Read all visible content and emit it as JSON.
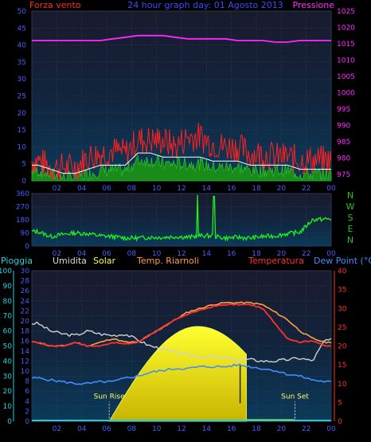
{
  "colors": {
    "wind_label": "#ff2a2a",
    "title": "#3a4cff",
    "pressure": "#ff28ff",
    "tick": "#4a5cff",
    "dir": "#17c817",
    "umidita_label": "#dddddd",
    "solar": "#ffff33",
    "temp_riarnoli": "#ffa040",
    "temp": "#ff3030",
    "dewpoint": "#3f8fff",
    "rain_axis": "#1fd4e0"
  },
  "labels": {
    "forza_vento": "Forza vento",
    "title": "24 hour graph day: 01 Agosto 2013",
    "pressione": "Pressione",
    "pioggia": "Pioggia",
    "umidita": "Umidita",
    "solar": "Solar",
    "temp_riarnoli": "Temp. Riarnoli",
    "temperatura": "Temperatura",
    "dew_point": "Dew Point (°C)",
    "sun_rise": "Sun Rise",
    "sun_set": "Sun Set"
  },
  "chart_data": [
    {
      "type": "line",
      "name": "wind_pressure",
      "x_labels": [
        "02",
        "04",
        "06",
        "08",
        "10",
        "12",
        "14",
        "16",
        "18",
        "20",
        "22",
        "00"
      ],
      "y_left": {
        "label": "Forza vento",
        "ticks": [
          0,
          5,
          10,
          15,
          20,
          25,
          30,
          35,
          40,
          45,
          50
        ],
        "range": [
          0,
          50
        ]
      },
      "y_right": {
        "label": "Pressione",
        "ticks": [
          975,
          980,
          985,
          990,
          995,
          1000,
          1005,
          1010,
          1015,
          1020,
          1025
        ],
        "range": [
          973,
          1025
        ]
      },
      "gust_hourly": [
        6,
        4,
        4,
        4,
        7,
        8,
        9,
        8,
        12,
        12,
        12,
        10,
        13,
        13,
        11,
        10,
        10,
        8,
        8,
        7,
        7,
        6,
        6,
        6
      ],
      "speed_hourly": [
        3,
        2,
        1,
        1,
        2,
        3,
        3,
        3,
        6,
        6,
        5,
        5,
        5,
        5,
        4,
        4,
        4,
        3,
        3,
        3,
        3,
        2,
        2,
        2
      ],
      "pressure_hourly": [
        1016,
        1016,
        1016,
        1016,
        1016,
        1016,
        1016.5,
        1017,
        1017.5,
        1017.5,
        1017.5,
        1017,
        1016.5,
        1016.5,
        1016.5,
        1016.5,
        1016,
        1016,
        1016,
        1015.5,
        1015.5,
        1016,
        1016,
        1016
      ]
    },
    {
      "type": "line",
      "name": "wind_direction",
      "x_labels": [
        "02",
        "04",
        "06",
        "08",
        "10",
        "12",
        "14",
        "16",
        "18",
        "20",
        "22",
        "00"
      ],
      "y_left": {
        "ticks": [
          0,
          90,
          180,
          270,
          360
        ],
        "range": [
          0,
          360
        ]
      },
      "y_right_cardinals": [
        "N",
        "W",
        "S",
        "E",
        "N"
      ],
      "direction_hourly": [
        100,
        65,
        80,
        90,
        85,
        70,
        65,
        55,
        55,
        60,
        60,
        65,
        60,
        70,
        70,
        55,
        60,
        55,
        65,
        70,
        85,
        95,
        180,
        185
      ],
      "spikes": [
        {
          "hour": 13.3,
          "value": 350
        },
        {
          "hour": 14.6,
          "value": 340
        }
      ]
    },
    {
      "type": "line",
      "name": "rain_humidity_solar_temp",
      "x_labels": [
        "02",
        "04",
        "06",
        "08",
        "10",
        "12",
        "14",
        "16",
        "18",
        "20",
        "22",
        "00"
      ],
      "rain_axis": {
        "label": "Pioggia",
        "ticks": [
          0,
          10,
          20,
          30,
          40,
          50,
          60,
          70,
          80,
          90,
          100
        ],
        "range": [
          0,
          100
        ]
      },
      "humidity_axis": {
        "ticks": [
          0,
          2,
          4,
          6,
          8,
          10,
          12,
          14,
          16,
          18,
          20,
          22,
          24,
          26,
          28,
          30
        ],
        "range": [
          0,
          30
        ]
      },
      "temp_axis": {
        "label": "Temperatura",
        "ticks": [
          0,
          5,
          10,
          15,
          20,
          25,
          30,
          35,
          40
        ],
        "range": [
          0,
          40
        ]
      },
      "sunrise_hour": 6.2,
      "sunset_hour": 21.1,
      "solar_peak_hour": 13.3,
      "solar_peak_pct": 63,
      "solar_cutoff_hour": 17.2,
      "humidity_hourly": [
        65,
        60,
        58,
        57,
        60,
        58,
        57,
        58,
        54,
        50,
        48,
        46,
        44,
        43,
        43,
        42,
        41,
        41,
        40,
        40,
        41,
        42,
        40,
        54
      ],
      "temp_riarnoli_hourly": [
        21,
        20,
        20,
        21,
        20,
        21,
        22,
        21,
        21,
        23,
        25,
        27,
        29,
        30,
        31,
        31.5,
        31.5,
        31.5,
        31,
        29,
        27,
        24,
        22,
        21
      ],
      "temperatura_hourly": [
        21,
        20,
        20,
        21,
        20,
        20,
        21,
        20.5,
        21,
        23,
        25,
        27,
        28.5,
        29.5,
        30.5,
        31,
        31,
        31,
        30,
        26,
        22,
        21,
        21.5,
        20
      ],
      "dew_point_hourly": [
        11.5,
        11,
        10.5,
        10,
        10,
        10.5,
        10.5,
        11.5,
        12,
        13,
        13.5,
        14,
        14,
        14.5,
        14.5,
        14.5,
        15,
        14.5,
        14,
        13.5,
        12.5,
        12,
        11,
        10.5
      ]
    }
  ]
}
